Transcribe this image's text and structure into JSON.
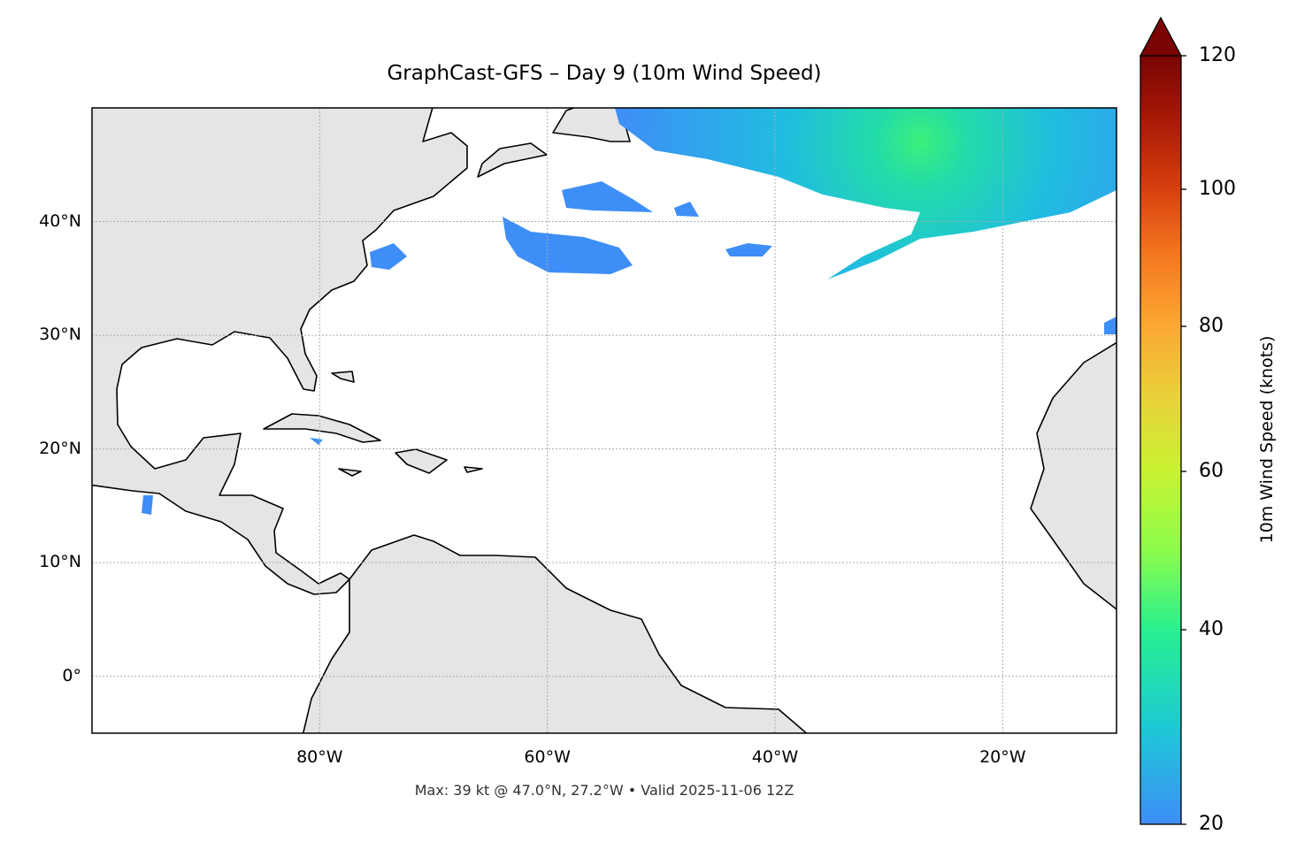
{
  "title": "GraphCast-GFS – Day 9 (10m Wind Speed)",
  "footer": "Max: 39 kt @ 47.0°N, 27.2°W • Valid 2025-11-06 12Z",
  "map": {
    "extent_lon": [
      -100,
      -10
    ],
    "extent_lat": [
      -5,
      50
    ],
    "land_color": "#e5e5e5",
    "ocean_color": "#ffffff",
    "gridlines": "dotted",
    "lon_ticks": [
      {
        "value": -80,
        "label": "80°W"
      },
      {
        "value": -60,
        "label": "60°W"
      },
      {
        "value": -40,
        "label": "40°W"
      },
      {
        "value": -20,
        "label": "20°W"
      }
    ],
    "lat_ticks": [
      {
        "value": 40,
        "label": "40°N"
      },
      {
        "value": 30,
        "label": "30°N"
      },
      {
        "value": 20,
        "label": "20°N"
      },
      {
        "value": 10,
        "label": "10°N"
      },
      {
        "value": 0,
        "label": "0°"
      }
    ],
    "max_wind": {
      "value_kt": 39,
      "lat": 47.0,
      "lon": -27.2
    }
  },
  "colorbar": {
    "label": "10m Wind Speed (knots)",
    "extend": "max",
    "ticks": [
      {
        "value": 20,
        "label": "20"
      },
      {
        "value": 40,
        "label": "40"
      },
      {
        "value": 60,
        "label": "60"
      },
      {
        "value": 80,
        "label": "80"
      },
      {
        "value": 100,
        "label": "100"
      },
      {
        "value": 120,
        "label": "120"
      }
    ],
    "colors": [
      "#3e8ef7",
      "#1dc9d5",
      "#28f08f",
      "#8cfd4b",
      "#c8f232",
      "#e9d23a",
      "#fba833",
      "#f57a20",
      "#d7400f",
      "#aa1a06",
      "#7a0403"
    ]
  }
}
